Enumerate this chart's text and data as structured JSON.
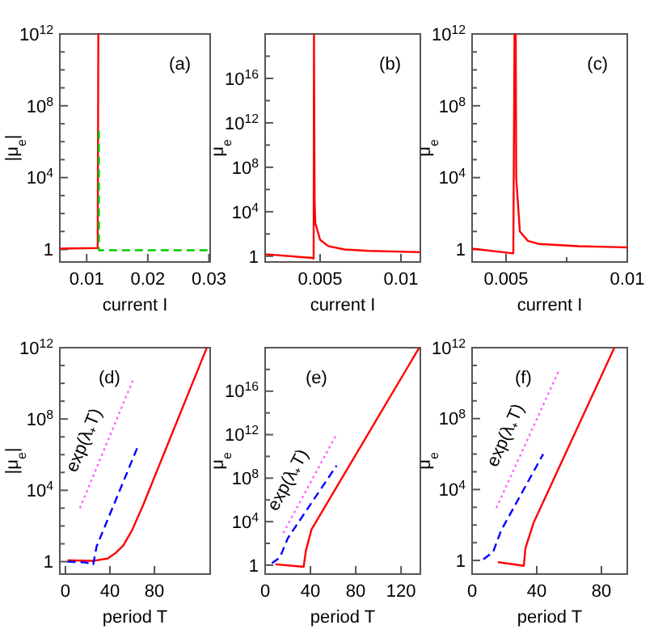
{
  "chart_data": [
    {
      "type": "line",
      "xlabel": "current I",
      "ylabel": "|μ$_{e}$|",
      "log": true,
      "xlim": [
        0.0056,
        0.0302
      ],
      "xticks": [
        0.01,
        0.02,
        0.03
      ],
      "ylim": [
        0.2,
        1000000000000.0
      ],
      "yticks": [
        {
          "value": 1,
          "label": "1"
        },
        {
          "value": 10,
          "label": null
        },
        {
          "value": 100,
          "label": null
        },
        {
          "value": 1000,
          "label": null
        },
        {
          "value": 10000.0,
          "label": "10$^{4}$"
        },
        {
          "value": 100000.0,
          "label": null
        },
        {
          "value": 1000000.0,
          "label": null
        },
        {
          "value": 10000000.0,
          "label": null
        },
        {
          "value": 100000000.0,
          "label": "10$^{8}$"
        },
        {
          "value": 1000000000.0,
          "label": null
        },
        {
          "value": 10000000000.0,
          "label": null
        },
        {
          "value": 100000000000.0,
          "label": null
        },
        {
          "value": 1000000000000.0,
          "label": "10$^{12}$"
        }
      ],
      "annotations": [
        "(a)"
      ],
      "series": [
        {
          "color": "#ff0000",
          "line_style": "solid",
          "x": [
            0.0056,
            0.0118,
            0.0119
          ],
          "values": [
            1.1,
            1.2,
            1000000000000.0
          ]
        },
        {
          "color": "#00cc00",
          "line_style": "dashed",
          "x": [
            0.012,
            0.012,
            0.0302
          ],
          "values": [
            4000000.0,
            0.9,
            0.9
          ]
        }
      ]
    },
    {
      "type": "line",
      "xlabel": "current I",
      "ylabel": "μ$_{e}$",
      "log": true,
      "xlim": [
        0.0016,
        0.0112
      ],
      "xticks": [
        0.005,
        0.01
      ],
      "ylim": [
        0.3,
        1e+20
      ],
      "yticks": [
        {
          "value": 1,
          "label": "1"
        },
        {
          "value": 100,
          "label": null
        },
        {
          "value": 10000.0,
          "label": "10$^{4}$"
        },
        {
          "value": 1000000.0,
          "label": null
        },
        {
          "value": 100000000.0,
          "label": "10$^{8}$"
        },
        {
          "value": 10000000000.0,
          "label": null
        },
        {
          "value": 1000000000000.0,
          "label": "10$^{12}$"
        },
        {
          "value": 100000000000000.0,
          "label": null
        },
        {
          "value": 1e+16,
          "label": "10$^{16}$"
        },
        {
          "value": 1e+18,
          "label": null
        }
      ],
      "annotations": [
        "(b)"
      ],
      "series": [
        {
          "color": "#ff0000",
          "line_style": "solid",
          "x": [
            0.0016,
            0.0045,
            0.0046,
            0.00462,
            0.00466,
            0.0047,
            0.005,
            0.0055,
            0.0065,
            0.008,
            0.0112
          ],
          "values": [
            1.5,
            0.7,
            0.6,
            1e+20,
            100000.0,
            1000,
            30,
            8,
            4,
            3,
            2.3
          ]
        }
      ]
    },
    {
      "type": "line",
      "xlabel": "current I",
      "ylabel": "μ$_{e}$",
      "log": true,
      "xlim": [
        0.0036,
        0.01
      ],
      "xticks": [
        0.005,
        {
          "value": 0.0075,
          "label": null
        },
        0.01
      ],
      "ylim": [
        0.2,
        1000000000000.0
      ],
      "yticks": [
        {
          "value": 1,
          "label": "1"
        },
        {
          "value": 10,
          "label": null
        },
        {
          "value": 100,
          "label": null
        },
        {
          "value": 1000,
          "label": null
        },
        {
          "value": 10000.0,
          "label": "10$^{4}$"
        },
        {
          "value": 100000.0,
          "label": null
        },
        {
          "value": 1000000.0,
          "label": null
        },
        {
          "value": 10000000.0,
          "label": null
        },
        {
          "value": 100000000.0,
          "label": "10$^{8}$"
        },
        {
          "value": 1000000000.0,
          "label": null
        },
        {
          "value": 10000000000.0,
          "label": null
        },
        {
          "value": 100000000000.0,
          "label": null
        },
        {
          "value": 1000000000000.0,
          "label": "10$^{12}$"
        }
      ],
      "annotations": [
        "(c)"
      ],
      "series": [
        {
          "color": "#ff0000",
          "line_style": "solid",
          "x": [
            0.0036,
            0.0053,
            0.00535,
            0.0054,
            0.00542,
            0.00557,
            0.0059,
            0.00637,
            0.008,
            0.01
          ],
          "values": [
            1.1,
            0.6,
            1000000000000.0,
            1000000000000.0,
            10000.0,
            10,
            3,
            2,
            1.5,
            1.3
          ]
        }
      ]
    },
    {
      "type": "line",
      "xlabel": "period T",
      "ylabel": "|μ$_{e}$|",
      "log": true,
      "xlim": [
        -5,
        130
      ],
      "xticks": [
        0,
        40,
        80
      ],
      "ylim": [
        0.2,
        1000000000000.0
      ],
      "yticks": [
        {
          "value": 1,
          "label": "1"
        },
        {
          "value": 10,
          "label": null
        },
        {
          "value": 100,
          "label": null
        },
        {
          "value": 1000,
          "label": null
        },
        {
          "value": 10000.0,
          "label": "10$^{4}$"
        },
        {
          "value": 100000.0,
          "label": null
        },
        {
          "value": 1000000.0,
          "label": null
        },
        {
          "value": 10000000.0,
          "label": null
        },
        {
          "value": 100000000.0,
          "label": "10$^{8}$"
        },
        {
          "value": 1000000000.0,
          "label": null
        },
        {
          "value": 10000000000.0,
          "label": null
        },
        {
          "value": 100000000000.0,
          "label": null
        },
        {
          "value": 1000000000000.0,
          "label": "10$^{12}$"
        }
      ],
      "annotations": [
        "(d)",
        "exp(λ₊T)"
      ],
      "series": [
        {
          "color": "#ff0000",
          "line_style": "solid",
          "x": [
            2,
            25,
            38,
            45,
            52,
            60,
            70,
            127
          ],
          "values": [
            1.2,
            1.1,
            1.5,
            3,
            8,
            60,
            1600,
            1000000000000.0
          ]
        },
        {
          "color": "#0000ff",
          "line_style": "dashed",
          "x": [
            2,
            18,
            25,
            28,
            66
          ],
          "values": [
            1,
            0.9,
            0.7,
            7,
            4000000.0
          ]
        },
        {
          "color": "#ff66ff",
          "line_style": "dotted",
          "x": [
            13,
            61
          ],
          "values": [
            1000,
            17000000000.0
          ]
        }
      ]
    },
    {
      "type": "line",
      "xlabel": "period T",
      "ylabel": "μ$_{e}$",
      "log": true,
      "xlim": [
        0,
        137
      ],
      "xticks": [
        0,
        40,
        80,
        120
      ],
      "ylim": [
        0.15,
        1e+20
      ],
      "yticks": [
        {
          "value": 1,
          "label": "1"
        },
        {
          "value": 100,
          "label": null
        },
        {
          "value": 10000.0,
          "label": "10$^{4}$"
        },
        {
          "value": 1000000.0,
          "label": null
        },
        {
          "value": 100000000.0,
          "label": "10$^{8}$"
        },
        {
          "value": 10000000000.0,
          "label": null
        },
        {
          "value": 1000000000000.0,
          "label": "10$^{12}$"
        },
        {
          "value": 100000000000000.0,
          "label": null
        },
        {
          "value": 1e+16,
          "label": "10$^{16}$"
        },
        {
          "value": 1e+18,
          "label": null
        }
      ],
      "annotations": [
        "(e)",
        "exp(λ₊T)"
      ],
      "series": [
        {
          "color": "#ff0000",
          "line_style": "solid",
          "x": [
            9,
            34,
            36,
            41,
            136
          ],
          "values": [
            1.2,
            0.7,
            22,
            2000,
            1e+20
          ]
        },
        {
          "color": "#0000ff",
          "line_style": "dashed",
          "x": [
            6,
            13,
            20,
            63
          ],
          "values": [
            1.5,
            5,
            300,
            1400000000.0
          ]
        },
        {
          "color": "#ff66ff",
          "line_style": "dotted",
          "x": [
            16,
            63
          ],
          "values": [
            900,
            1100000000000.0
          ]
        }
      ]
    },
    {
      "type": "line",
      "xlabel": "period T",
      "ylabel": "μ$_{e}$",
      "log": true,
      "xlim": [
        0,
        96
      ],
      "xticks": [
        0,
        40,
        80
      ],
      "ylim": [
        0.17,
        1000000000000.0
      ],
      "yticks": [
        {
          "value": 1,
          "label": "1"
        },
        {
          "value": 10,
          "label": null
        },
        {
          "value": 100,
          "label": null
        },
        {
          "value": 1000,
          "label": null
        },
        {
          "value": 10000.0,
          "label": "10$^{4}$"
        },
        {
          "value": 100000.0,
          "label": null
        },
        {
          "value": 1000000.0,
          "label": null
        },
        {
          "value": 10000000.0,
          "label": null
        },
        {
          "value": 100000000.0,
          "label": "10$^{8}$"
        },
        {
          "value": 1000000000.0,
          "label": null
        },
        {
          "value": 10000000000.0,
          "label": null
        },
        {
          "value": 100000000000.0,
          "label": null
        },
        {
          "value": 1000000000000.0,
          "label": "10$^{12}$"
        }
      ],
      "annotations": [
        "(f)",
        "exp(λ₊T)"
      ],
      "series": [
        {
          "color": "#ff0000",
          "line_style": "solid",
          "x": [
            16,
            32,
            33,
            38,
            88
          ],
          "values": [
            0.8,
            0.5,
            5,
            130,
            1000000000000.0
          ]
        },
        {
          "color": "#0000ff",
          "line_style": "dashed",
          "x": [
            7,
            13,
            18,
            44
          ],
          "values": [
            1.15,
            3,
            50,
            1000000.0
          ]
        },
        {
          "color": "#ff66ff",
          "line_style": "dotted",
          "x": [
            15,
            54
          ],
          "values": [
            900,
            60000000000.0
          ]
        }
      ]
    }
  ]
}
